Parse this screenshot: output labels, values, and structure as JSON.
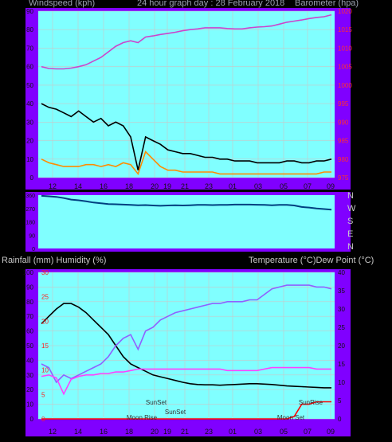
{
  "header": {
    "left": "Windspeed (kph)",
    "center": "24 hour graph day : 28 February 2018",
    "right": "Barometer (hpa)"
  },
  "bottom_header": {
    "left": "Rainfall (mm)  Humidity (%)",
    "right": "Temperature (°C)Dew Point (°C)"
  },
  "direction_labels": [
    "N",
    "W",
    "S",
    "E",
    "N"
  ],
  "annotations": {
    "sunset_1": "SunSet",
    "sunset_2": "SunSet",
    "moon_rise": "Moon Rise",
    "sun_rise": "SunRise",
    "moon_set": "Moon Set"
  },
  "colors": {
    "plot_bg": "#80ffff",
    "frame": "#8000ff",
    "gust": "#000000",
    "avg_wind": "#ff8c00",
    "pressure": "#cc44cc",
    "direction": "#004080",
    "temperature": "#000000",
    "dewpoint": "#9060ff",
    "humidity": "#ff40ff",
    "rainfall": "#ff0000"
  },
  "chart_data": [
    {
      "type": "line",
      "x_ticks": [
        "12",
        "14",
        "16",
        "18",
        "20",
        "19",
        "21",
        "23",
        "01",
        "03",
        "05",
        "07",
        "09"
      ],
      "y_left_ticks": [
        0,
        10,
        20,
        30,
        40,
        50,
        60,
        70,
        80,
        90
      ],
      "y_right_ticks": [
        975,
        980,
        985,
        990,
        995,
        1000,
        1005,
        1010,
        1015,
        1020
      ],
      "ylim_left": [
        0,
        90
      ],
      "ylim_right": [
        975,
        1020
      ],
      "series": [
        {
          "name": "Gust",
          "axis": "left",
          "values": [
            40,
            38,
            37,
            35,
            33,
            36,
            33,
            30,
            32,
            28,
            30,
            28,
            22,
            4,
            22,
            20,
            18,
            15,
            14,
            13,
            13,
            12,
            11,
            11,
            10,
            10,
            9,
            9,
            9,
            8,
            8,
            8,
            8,
            9,
            9,
            8,
            8,
            9,
            9,
            10
          ]
        },
        {
          "name": "Wind Speed",
          "axis": "left",
          "values": [
            10,
            8,
            7,
            6,
            6,
            6,
            7,
            7,
            6,
            7,
            6,
            8,
            7,
            2,
            14,
            10,
            6,
            4,
            4,
            3,
            3,
            3,
            3,
            3,
            2,
            2,
            2,
            2,
            2,
            2,
            2,
            2,
            2,
            2,
            2,
            2,
            2,
            2,
            3,
            3
          ]
        },
        {
          "name": "Barometer",
          "axis": "right",
          "values": [
            1005,
            1004.5,
            1004.4,
            1004.4,
            1004.6,
            1005,
            1005.5,
            1006.5,
            1007.5,
            1009,
            1010.5,
            1011.5,
            1012,
            1011.5,
            1013,
            1013.3,
            1013.7,
            1014,
            1014.3,
            1014.7,
            1015,
            1015.2,
            1015.5,
            1015.5,
            1015.5,
            1015.3,
            1015.2,
            1015.2,
            1015.5,
            1015.7,
            1015.8,
            1016,
            1016.5,
            1017,
            1017.3,
            1017.6,
            1018,
            1018.3,
            1018.5,
            1019
          ]
        }
      ]
    },
    {
      "type": "line",
      "y_range_deg": [
        0,
        360
      ],
      "series": [
        {
          "name": "Wind Direction",
          "values": [
            355,
            352,
            348,
            340,
            330,
            325,
            318,
            310,
            305,
            300,
            298,
            296,
            294,
            292,
            293,
            290,
            288,
            290,
            292,
            290,
            292,
            294,
            294,
            293,
            294,
            294,
            296,
            296,
            296,
            295,
            294,
            292,
            294,
            294,
            290,
            280,
            276,
            270,
            266,
            262
          ]
        }
      ]
    },
    {
      "type": "line",
      "x_ticks": [
        "12",
        "14",
        "16",
        "18",
        "20",
        "19",
        "21",
        "23",
        "01",
        "03",
        "05",
        "07",
        "09"
      ],
      "y_left_ticks": [
        0,
        10,
        20,
        30,
        40,
        50,
        60,
        70,
        80,
        90,
        100
      ],
      "y_rain_ticks": [
        0,
        5,
        10,
        15,
        20,
        25,
        30
      ],
      "y_right_ticks": [
        0,
        5,
        10,
        15,
        20,
        25,
        30,
        35,
        40
      ],
      "ylim_left": [
        0,
        100
      ],
      "ylim_right": [
        0,
        40
      ],
      "series": [
        {
          "name": "Temperature",
          "axis": "right",
          "values": [
            26,
            28,
            30,
            31.5,
            31.5,
            30.5,
            29,
            27,
            25,
            23,
            20,
            17,
            15,
            14,
            13,
            12,
            11.5,
            11,
            10.5,
            10,
            9.6,
            9.4,
            9.3,
            9.3,
            9.2,
            9.3,
            9.4,
            9.5,
            9.6,
            9.6,
            9.5,
            9.4,
            9.2,
            9,
            8.9,
            8.8,
            8.7,
            8.6,
            8.5,
            8.5
          ]
        },
        {
          "name": "Dew Point",
          "axis": "right",
          "values": [
            15,
            14,
            10,
            12,
            11,
            12,
            13,
            14,
            15,
            17,
            20,
            22,
            23,
            19,
            24,
            25,
            27,
            28,
            29,
            29.5,
            30,
            30.5,
            31,
            31.5,
            31.5,
            32,
            32,
            32,
            32.5,
            32.5,
            34,
            35.5,
            36,
            36.5,
            36.5,
            36.5,
            36.5,
            36,
            36,
            35.5
          ]
        },
        {
          "name": "Humidity",
          "axis": "left",
          "values": [
            29,
            30,
            28,
            17,
            27,
            29,
            30,
            30,
            31,
            31,
            32,
            32,
            33,
            34,
            34,
            34,
            34,
            34,
            34,
            34,
            34,
            34,
            34,
            34,
            34,
            33,
            33,
            33,
            33,
            33,
            34,
            35,
            35,
            35,
            35,
            35,
            35,
            34,
            34,
            34
          ]
        },
        {
          "name": "Rainfall",
          "axis": "rain",
          "values": [
            0,
            0,
            0,
            0,
            0,
            0,
            0,
            0,
            0,
            0,
            0,
            0,
            0,
            0,
            0,
            0,
            0,
            0,
            0,
            0,
            0,
            0,
            0,
            0,
            0,
            0,
            0,
            0,
            0,
            0,
            0,
            0,
            0,
            0,
            0.5,
            3,
            3,
            3.5,
            3.5,
            3.5
          ]
        }
      ]
    }
  ]
}
